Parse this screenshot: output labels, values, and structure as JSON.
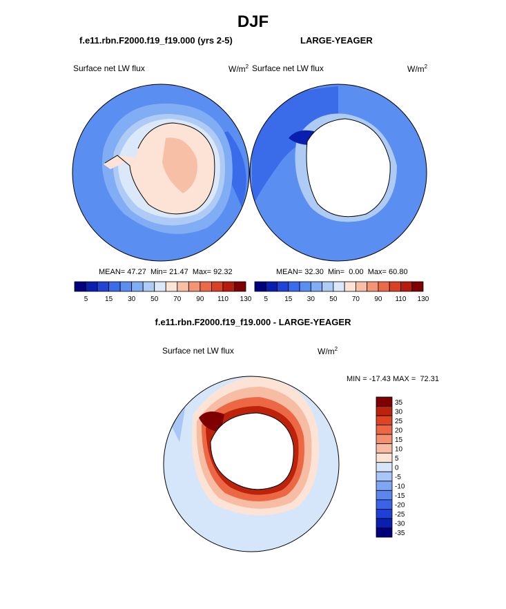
{
  "page": {
    "title": "DJF",
    "left_case": "f.e11.rbn.F2000.f19_f19.000 (yrs 2-5)",
    "right_case": "LARGE-YEAGER",
    "diff_title": "f.e11.rbn.F2000.f19_f19.000 - LARGE-YEAGER"
  },
  "colors": {
    "land": "#ffffff",
    "coast": "#000000",
    "top_scale": [
      "#00007f",
      "#0a1fb0",
      "#2244d6",
      "#3a6cea",
      "#5a8ef0",
      "#80adf4",
      "#aecbf6",
      "#dbe8fa",
      "#fde3d6",
      "#f7bfa6",
      "#f29475",
      "#ea6a4a",
      "#d94125",
      "#b51c0e",
      "#7f0000"
    ],
    "diff_scale": [
      "#00007f",
      "#0a1fb0",
      "#1e40d6",
      "#3a63e8",
      "#5a86ee",
      "#7ea6f2",
      "#a8c6f6",
      "#d6e6fa",
      "#fde3d6",
      "#f7bca4",
      "#f29070",
      "#ec6845",
      "#de4420",
      "#bd220a",
      "#7f0000"
    ]
  },
  "chart_data": [
    {
      "type": "heatmap",
      "projection": "south-polar-stereographic",
      "panel": "top-left",
      "case": "f.e11.rbn.F2000.f19_f19.000 (yrs 2-5)",
      "field": "Surface net LW flux",
      "units": "W/m",
      "units_exp": "2",
      "stats": {
        "mean_label": "MEAN=",
        "mean": "47.27",
        "min_label": "Min=",
        "min": "21.47",
        "max_label": "Max=",
        "max": "92.32"
      },
      "levels": [
        5,
        10,
        15,
        20,
        30,
        40,
        50,
        60,
        70,
        80,
        90,
        100,
        110,
        120,
        130
      ],
      "tick_labels": [
        "5",
        "15",
        "30",
        "50",
        "70",
        "90",
        "110",
        "130"
      ],
      "regions": {
        "open_ocean": 30,
        "outer_sea_ice": 40,
        "inner_sea_ice": 55,
        "continent": 75,
        "continent_interior_patches": 70
      }
    },
    {
      "type": "heatmap",
      "projection": "south-polar-stereographic",
      "panel": "top-right",
      "case": "LARGE-YEAGER",
      "field": "Surface net LW flux",
      "units": "W/m",
      "units_exp": "2",
      "stats": {
        "mean_label": "MEAN=",
        "mean": "32.30",
        "min_label": "Min=",
        "min": "0.00",
        "max_label": "Max=",
        "max": "60.80"
      },
      "levels": [
        5,
        10,
        15,
        20,
        30,
        40,
        50,
        60,
        70,
        80,
        90,
        100,
        110,
        120,
        130
      ],
      "tick_labels": [
        "5",
        "15",
        "30",
        "50",
        "70",
        "90",
        "110",
        "130"
      ],
      "regions": {
        "open_ocean": 30,
        "pacific_sector": 20,
        "coastal_minimum": 5,
        "continent": "missing"
      }
    },
    {
      "type": "heatmap",
      "projection": "south-polar-stereographic",
      "panel": "bottom-difference",
      "field": "Surface net LW flux",
      "units": "W/m",
      "units_exp": "2",
      "stats": {
        "min_label": "MIN =",
        "min": "-17.43",
        "max_label": "MAX =",
        "max": "72.31"
      },
      "levels": [
        -35,
        -30,
        -25,
        -20,
        -15,
        -10,
        -5,
        0,
        5,
        10,
        15,
        20,
        25,
        30,
        35
      ],
      "tick_labels": [
        "35",
        "30",
        "25",
        "20",
        "15",
        "10",
        "5",
        "0",
        "-5",
        "-10",
        "-15",
        "-20",
        "-25",
        "-30",
        "-35"
      ],
      "regions": {
        "open_ocean": -2,
        "sea_ice_band": 10,
        "coastal_ring": 35,
        "continent": "missing"
      }
    }
  ]
}
